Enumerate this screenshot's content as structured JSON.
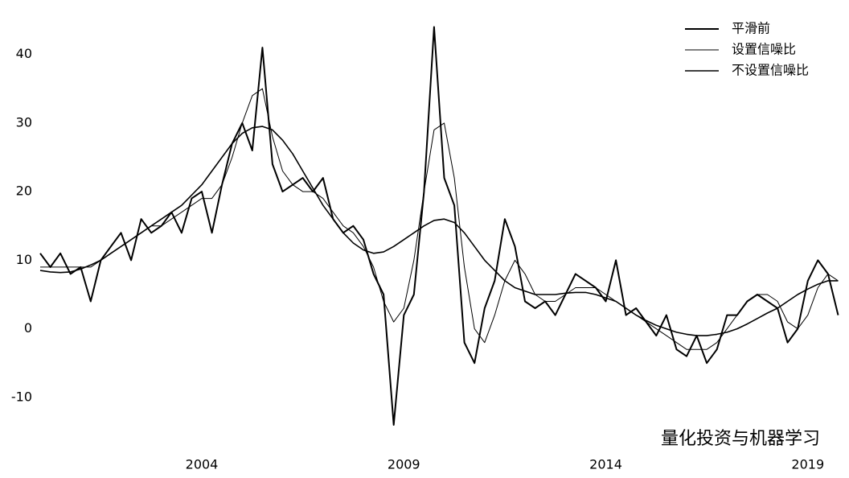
{
  "chart_data": {
    "type": "line",
    "x": [
      2000,
      2000.25,
      2000.5,
      2000.75,
      2001,
      2001.25,
      2001.5,
      2001.75,
      2002,
      2002.25,
      2002.5,
      2002.75,
      2003,
      2003.25,
      2003.5,
      2003.75,
      2004,
      2004.25,
      2004.5,
      2004.75,
      2005,
      2005.25,
      2005.5,
      2005.75,
      2006,
      2006.25,
      2006.5,
      2006.75,
      2007,
      2007.25,
      2007.5,
      2007.75,
      2008,
      2008.25,
      2008.5,
      2008.75,
      2009,
      2009.25,
      2009.5,
      2009.75,
      2010,
      2010.25,
      2010.5,
      2010.75,
      2011,
      2011.25,
      2011.5,
      2011.75,
      2012,
      2012.25,
      2012.5,
      2012.75,
      2013,
      2013.25,
      2013.5,
      2013.75,
      2014,
      2014.25,
      2014.5,
      2014.75,
      2015,
      2015.25,
      2015.5,
      2015.75,
      2016,
      2016.25,
      2016.5,
      2016.75,
      2017,
      2017.25,
      2017.5,
      2017.75,
      2018,
      2018.25,
      2018.5,
      2018.75,
      2019,
      2019.25,
      2019.5,
      2019.75
    ],
    "series": [
      {
        "name": "平滑前",
        "color": "#000000",
        "values": [
          11,
          9,
          11,
          8,
          9,
          4,
          10,
          12,
          14,
          10,
          16,
          14,
          15,
          17,
          14,
          19,
          20,
          14,
          21,
          27,
          30,
          26,
          41,
          24,
          20,
          21,
          22,
          20,
          22,
          16,
          14,
          15,
          13,
          8,
          5,
          -14,
          2,
          5,
          20,
          44,
          22,
          18,
          -2,
          -5,
          3,
          7,
          16,
          12,
          4,
          3,
          4,
          2,
          5,
          8,
          7,
          6,
          4,
          10,
          2,
          3,
          1,
          -1,
          2,
          -3,
          -4,
          -1,
          -5,
          -3,
          2,
          2,
          4,
          5,
          4,
          3,
          -2,
          0,
          7,
          10,
          8,
          2
        ]
      },
      {
        "name": "设置信噪比",
        "color": "#000000",
        "values": [
          9,
          9,
          9,
          9,
          9,
          9,
          10,
          11,
          12,
          13,
          14,
          15,
          15,
          16,
          17,
          18,
          19,
          19,
          21,
          25,
          30,
          34,
          35,
          28,
          23,
          21,
          20,
          20,
          19,
          17,
          15,
          14,
          12,
          9,
          4,
          1,
          3,
          10,
          20,
          29,
          30,
          22,
          9,
          0,
          -2,
          2,
          7,
          10,
          8,
          5,
          4,
          4,
          5,
          6,
          6,
          6,
          5,
          4,
          3,
          2,
          1,
          0,
          -1,
          -2,
          -3,
          -3,
          -3,
          -2,
          0,
          2,
          4,
          5,
          5,
          4,
          1,
          0,
          2,
          6,
          8,
          7
        ]
      },
      {
        "name": "不设置信噪比",
        "color": "#000000",
        "values": [
          8.5,
          8.3,
          8.2,
          8.3,
          8.7,
          9.3,
          10,
          11,
          12,
          13,
          14,
          15,
          16,
          17,
          18,
          19.5,
          21,
          23,
          25,
          27,
          28.5,
          29.3,
          29.5,
          29,
          27.5,
          25.5,
          23,
          20.5,
          18,
          16,
          14,
          12.5,
          11.5,
          11,
          11.2,
          12,
          13,
          14,
          15,
          15.8,
          16,
          15.5,
          14,
          12,
          10,
          8.5,
          7,
          6,
          5.5,
          5,
          5,
          5,
          5.2,
          5.3,
          5.3,
          5,
          4.5,
          4,
          3,
          2,
          1.2,
          0.5,
          0,
          -0.5,
          -0.8,
          -1,
          -1,
          -0.8,
          -0.5,
          0,
          0.7,
          1.5,
          2.3,
          3,
          4,
          5,
          5.8,
          6.5,
          7,
          7
        ]
      }
    ],
    "xlim": [
      2000,
      2019.9
    ],
    "xticks": [
      2004,
      2009,
      2014,
      2019
    ],
    "ylim": [
      -16,
      45
    ],
    "yticks": [
      -10,
      0,
      10,
      20,
      30,
      40
    ],
    "grid": false,
    "legend": "upper right",
    "annotation": "量化投资与机器学习"
  }
}
